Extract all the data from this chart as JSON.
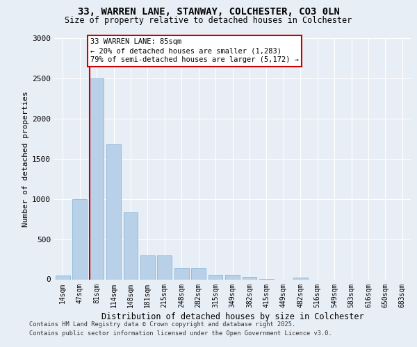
{
  "title_line1": "33, WARREN LANE, STANWAY, COLCHESTER, CO3 0LN",
  "title_line2": "Size of property relative to detached houses in Colchester",
  "xlabel": "Distribution of detached houses by size in Colchester",
  "ylabel": "Number of detached properties",
  "categories": [
    "14sqm",
    "47sqm",
    "81sqm",
    "114sqm",
    "148sqm",
    "181sqm",
    "215sqm",
    "248sqm",
    "282sqm",
    "315sqm",
    "349sqm",
    "382sqm",
    "415sqm",
    "449sqm",
    "482sqm",
    "516sqm",
    "549sqm",
    "583sqm",
    "616sqm",
    "650sqm",
    "683sqm"
  ],
  "values": [
    50,
    1000,
    2500,
    1680,
    830,
    300,
    295,
    145,
    145,
    55,
    55,
    30,
    5,
    0,
    20,
    0,
    0,
    0,
    0,
    0,
    0
  ],
  "bar_color": "#b8d0e8",
  "bar_edge_color": "#7bafd4",
  "highlight_bar_index": 2,
  "highlight_color": "#cc0000",
  "annotation_text": "33 WARREN LANE: 85sqm\n← 20% of detached houses are smaller (1,283)\n79% of semi-detached houses are larger (5,172) →",
  "ylim": [
    0,
    3000
  ],
  "yticks": [
    0,
    500,
    1000,
    1500,
    2000,
    2500,
    3000
  ],
  "bg_color": "#e8eef6",
  "footnote_line1": "Contains HM Land Registry data © Crown copyright and database right 2025.",
  "footnote_line2": "Contains public sector information licensed under the Open Government Licence v3.0."
}
